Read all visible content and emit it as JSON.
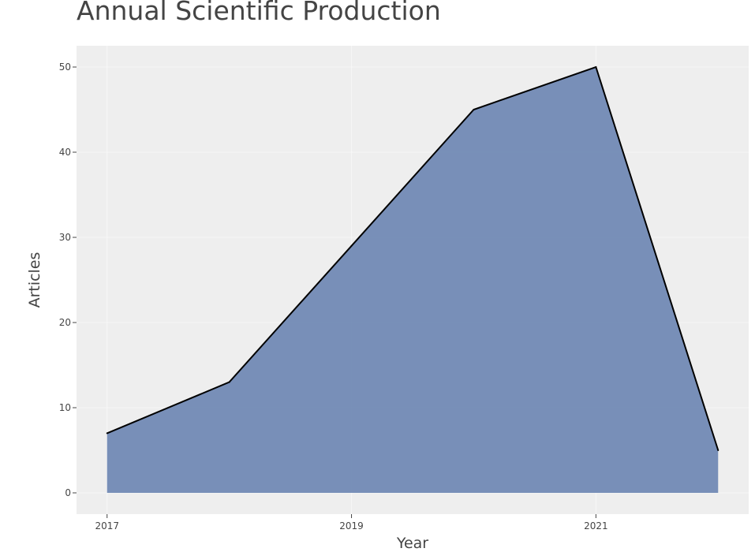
{
  "chart_data": {
    "type": "area",
    "title": "Annual Scientific Production",
    "xlabel": "Year",
    "ylabel": "Articles",
    "x": [
      2017,
      2018,
      2019,
      2020,
      2021,
      2022
    ],
    "values": [
      7,
      13,
      29,
      45,
      50,
      5
    ],
    "xlim": [
      2016.75,
      2022.25
    ],
    "ylim": [
      -2.5,
      52.5
    ],
    "x_ticks": [
      2017,
      2019,
      2021
    ],
    "y_ticks": [
      0,
      10,
      20,
      30,
      40,
      50
    ],
    "grid": true,
    "legend": "none",
    "colors": {
      "fill": "#6a84b1",
      "line": "#000000",
      "plot_background": "#eeeeee",
      "gridline": "#f7f7f7",
      "text": "#444444"
    }
  }
}
